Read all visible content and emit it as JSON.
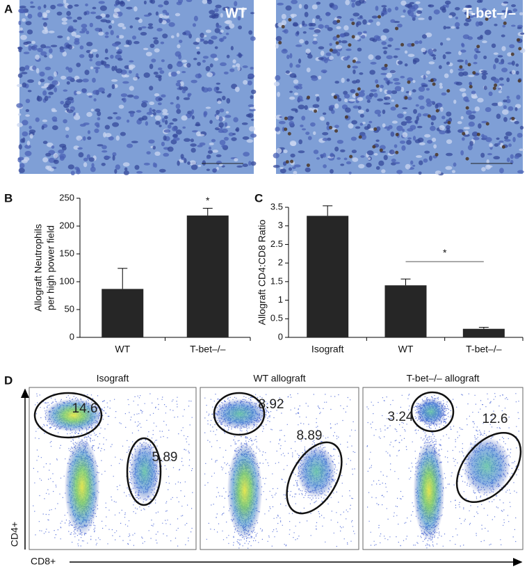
{
  "panel_labels": [
    "A",
    "B",
    "C",
    "D"
  ],
  "micrographs": [
    {
      "label": "WT"
    },
    {
      "label": "T-bet–/–"
    }
  ],
  "chart_data": [
    {
      "type": "bar",
      "ylabel": [
        "Allograft Neutrophils",
        "per high power field"
      ],
      "categories": [
        "WT",
        "T-bet–/–"
      ],
      "values": [
        87,
        219
      ],
      "errors": [
        37,
        13
      ],
      "color": "#262626",
      "ylim": [
        0,
        250
      ],
      "yticks": [
        0,
        50,
        100,
        150,
        200,
        250
      ],
      "annotations": [
        {
          "text": "*",
          "at": 1
        }
      ]
    },
    {
      "type": "bar",
      "ylabel": [
        "Allograft CD4:CD8 Ratio"
      ],
      "categories": [
        "Isograft",
        "WT",
        "T-bet–/–"
      ],
      "values": [
        3.27,
        1.4,
        0.23
      ],
      "errors": [
        0.27,
        0.17,
        0.04
      ],
      "color": "#262626",
      "ylim": [
        0,
        3.5
      ],
      "yticks": [
        0,
        0.5,
        1,
        1.5,
        2,
        2.5,
        3,
        3.5
      ],
      "annotations": [
        {
          "text": "*",
          "from": 1,
          "to": 2
        }
      ]
    }
  ],
  "flow": {
    "x_axis": "CD8+",
    "y_axis": "CD4+",
    "plots": [
      {
        "title": "Isograft",
        "gates": [
          "14.6",
          "5.89"
        ]
      },
      {
        "title": "WT allograft",
        "gates": [
          "8.92",
          "8.89"
        ]
      },
      {
        "title": "T-bet–/– allograft",
        "gates": [
          "3.24",
          "12.6"
        ]
      }
    ]
  }
}
